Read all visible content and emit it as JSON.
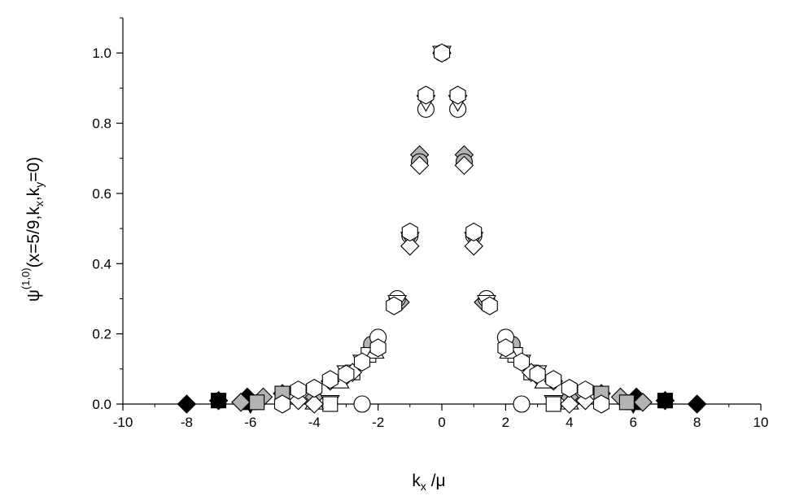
{
  "chart_data": {
    "type": "scatter",
    "title": "",
    "xlabel": {
      "base": "k",
      "sub": "x",
      "rest": " /μ"
    },
    "ylabel": {
      "psi": "ψ",
      "sup": "(1,0)",
      "p1": "(x=5/9,k",
      "s1": "x",
      "p2": ",k",
      "s2": "y",
      "p3": "=0)"
    },
    "xlim": [
      -10,
      10
    ],
    "ylim": [
      0,
      1.1
    ],
    "xticks": [
      -10,
      -8,
      -6,
      -4,
      -2,
      0,
      2,
      4,
      6,
      8,
      10
    ],
    "xtick_labels": [
      "-10",
      "-8",
      "-6",
      "-4",
      "-2",
      "0",
      "2",
      "4",
      "6",
      "8",
      "10"
    ],
    "yticks": [
      0,
      0.2,
      0.4,
      0.6,
      0.8,
      1.0
    ],
    "ytick_labels": [
      "0.0",
      "0.2",
      "0.4",
      "0.6",
      "0.8",
      "1.0"
    ],
    "grid": false,
    "legend": "none",
    "series": [
      {
        "marker": "diamond",
        "fill": "#000000",
        "x": [
          -8,
          8
        ],
        "y": [
          0,
          0
        ]
      },
      {
        "marker": "square",
        "fill": "#000000",
        "x": [
          -7,
          -6,
          6,
          7
        ],
        "y": [
          0.01,
          0.005,
          0.005,
          0.01
        ]
      },
      {
        "marker": "diamond",
        "fill": "#000000",
        "x": [
          -7,
          -6.1,
          6.1,
          7
        ],
        "y": [
          0.01,
          0.02,
          0.02,
          0.01
        ]
      },
      {
        "marker": "triangle-down",
        "fill": "#000000",
        "x": [
          -6,
          6
        ],
        "y": [
          0,
          0
        ]
      },
      {
        "marker": "diamond",
        "fill": "#b3b3b3",
        "x": [
          -6.3,
          -5.6,
          -5,
          -4,
          -3,
          -2.2,
          -1.3,
          -0.7,
          0,
          0.7,
          1.3,
          2.2,
          3,
          4,
          5,
          5.6,
          6.3
        ],
        "y": [
          0.005,
          0.02,
          0.03,
          0.02,
          0.08,
          0.16,
          0.29,
          0.71,
          1.0,
          0.71,
          0.29,
          0.16,
          0.08,
          0.02,
          0.03,
          0.02,
          0.005
        ]
      },
      {
        "marker": "square",
        "fill": "#b3b3b3",
        "x": [
          -5.8,
          -5,
          5,
          5.8
        ],
        "y": [
          0.005,
          0.03,
          0.03,
          0.005
        ]
      },
      {
        "marker": "circle",
        "fill": "#b3b3b3",
        "x": [
          -2.2,
          -0.7,
          0.7,
          2.2
        ],
        "y": [
          0.17,
          0.69,
          0.69,
          0.17
        ]
      },
      {
        "marker": "circle",
        "fill": "#ffffff",
        "x": [
          -2.5,
          -2,
          -1.4,
          -1,
          -0.5,
          0,
          0.5,
          1,
          1.4,
          2,
          2.5
        ],
        "y": [
          0,
          0.19,
          0.3,
          0.48,
          0.84,
          1.0,
          0.84,
          0.48,
          0.3,
          0.19,
          0
        ]
      },
      {
        "marker": "triangle-down",
        "fill": "#ffffff",
        "x": [
          -3.5,
          -3,
          -2.5,
          -1.4,
          -1,
          -0.5,
          0,
          0.5,
          1,
          1.4,
          2.5,
          3,
          3.5
        ],
        "y": [
          0.005,
          0.09,
          0.12,
          0.29,
          0.47,
          0.86,
          1.0,
          0.86,
          0.47,
          0.29,
          0.12,
          0.09,
          0.005
        ]
      },
      {
        "marker": "square",
        "fill": "#ffffff",
        "x": [
          -3.5,
          -2.8,
          -2.3,
          2.3,
          2.8,
          3.5
        ],
        "y": [
          0,
          0.09,
          0.14,
          0.14,
          0.09,
          0
        ]
      },
      {
        "marker": "triangle-up",
        "fill": "#ffffff",
        "x": [
          -4,
          -3.2,
          -2.1,
          2.1,
          3.2,
          4
        ],
        "y": [
          0.005,
          0.065,
          0.15,
          0.15,
          0.065,
          0.005
        ]
      },
      {
        "marker": "diamond",
        "fill": "#ffffff",
        "x": [
          -4.5,
          -4,
          -3.5,
          -2.8,
          -1,
          -0.7,
          0.7,
          1,
          2.8,
          3.5,
          4,
          4.5
        ],
        "y": [
          0.01,
          0,
          0.065,
          0.09,
          0.45,
          0.68,
          0.68,
          0.45,
          0.09,
          0.065,
          0,
          0.01
        ]
      },
      {
        "marker": "hexagon",
        "fill": "#ffffff",
        "x": [
          -5,
          -4.5,
          -4,
          -3.5,
          -3,
          -2.5,
          -2,
          -1.5,
          -1,
          -0.5,
          0,
          0.5,
          1,
          1.5,
          2,
          2.5,
          3,
          3.5,
          4,
          4.5,
          5
        ],
        "y": [
          0,
          0.04,
          0.045,
          0.07,
          0.085,
          0.12,
          0.16,
          0.28,
          0.49,
          0.88,
          1.0,
          0.88,
          0.49,
          0.28,
          0.16,
          0.12,
          0.085,
          0.07,
          0.045,
          0.04,
          0
        ]
      }
    ]
  }
}
